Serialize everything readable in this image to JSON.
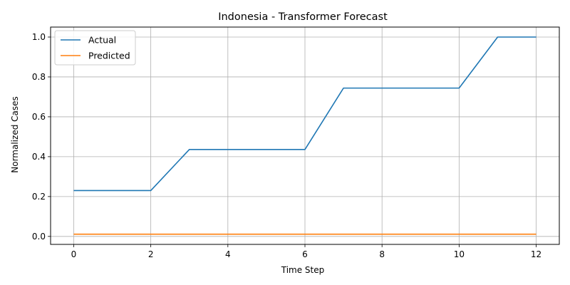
{
  "chart_data": {
    "type": "line",
    "title": "Indonesia - Transformer Forecast",
    "xlabel": "Time Step",
    "ylabel": "Normalized Cases",
    "x": [
      0,
      1,
      2,
      3,
      4,
      5,
      6,
      7,
      8,
      9,
      10,
      11,
      12
    ],
    "xlim": [
      -0.6,
      12.6
    ],
    "ylim": [
      -0.04,
      1.05
    ],
    "xticks": [
      0,
      2,
      4,
      6,
      8,
      10,
      12
    ],
    "yticks": [
      0.0,
      0.2,
      0.4,
      0.6,
      0.8,
      1.0
    ],
    "ytick_labels": [
      "0.0",
      "0.2",
      "0.4",
      "0.6",
      "0.8",
      "1.0"
    ],
    "grid": true,
    "legend_position": "top-left",
    "series": [
      {
        "name": "Actual",
        "color": "#1f77b4",
        "values": [
          0.23,
          0.23,
          0.23,
          0.436,
          0.436,
          0.436,
          0.436,
          0.744,
          0.744,
          0.744,
          0.744,
          1.0,
          1.0
        ]
      },
      {
        "name": "Predicted",
        "color": "#ff7f0e",
        "values": [
          0.011,
          0.011,
          0.011,
          0.011,
          0.011,
          0.011,
          0.011,
          0.011,
          0.011,
          0.011,
          0.011,
          0.011,
          0.011
        ]
      }
    ]
  }
}
